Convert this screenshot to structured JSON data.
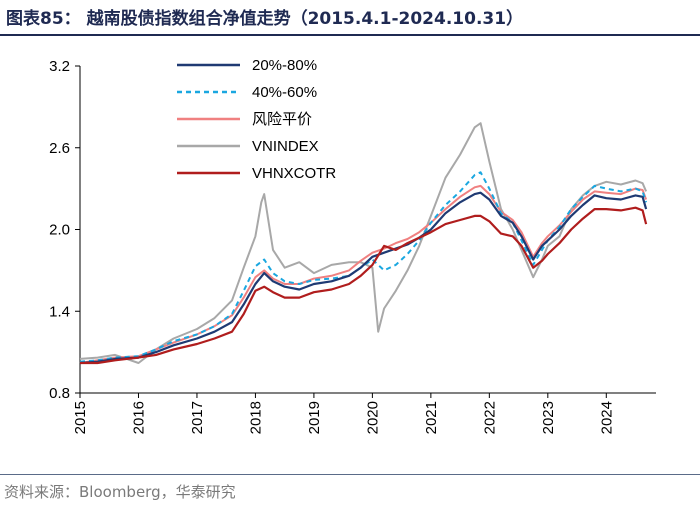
{
  "header": {
    "title": "图表85：  越南股债指数组合净值走势（2015.4.1-2024.10.31）"
  },
  "footer": {
    "source": "资料来源：Bloomberg，华泰研究"
  },
  "chart_data": {
    "type": "line",
    "title": "越南股债指数组合净值走势（2015.4.1-2024.10.31）",
    "xlabel": "",
    "ylabel": "",
    "xlim": [
      2015.0,
      2024.85
    ],
    "ylim": [
      0.8,
      3.2
    ],
    "yticks": [
      "3.2",
      "2.6",
      "2.0",
      "1.4",
      "0.8"
    ],
    "ytick_values": [
      3.2,
      2.6,
      2.0,
      1.4,
      0.8
    ],
    "xticks": [
      "2015",
      "2016",
      "2017",
      "2018",
      "2019",
      "2020",
      "2021",
      "2022",
      "2023",
      "2024"
    ],
    "xtick_values": [
      2015,
      2016,
      2017,
      2018,
      2019,
      2020,
      2021,
      2022,
      2023,
      2024
    ],
    "legend_position": "top-left",
    "series": [
      {
        "name": "20%-80%",
        "color": "#1f3a73",
        "dash": "",
        "x": [
          2015.0,
          2015.3,
          2015.6,
          2016.0,
          2016.3,
          2016.6,
          2017.0,
          2017.3,
          2017.6,
          2017.8,
          2018.0,
          2018.15,
          2018.3,
          2018.5,
          2018.75,
          2019.0,
          2019.3,
          2019.6,
          2019.8,
          2020.0,
          2020.2,
          2020.4,
          2020.6,
          2020.8,
          2021.0,
          2021.25,
          2021.5,
          2021.75,
          2021.85,
          2022.0,
          2022.2,
          2022.4,
          2022.55,
          2022.75,
          2022.9,
          2023.0,
          2023.2,
          2023.4,
          2023.6,
          2023.8,
          2024.0,
          2024.25,
          2024.5,
          2024.62,
          2024.68
        ],
        "values": [
          1.02,
          1.03,
          1.05,
          1.06,
          1.1,
          1.15,
          1.2,
          1.25,
          1.32,
          1.45,
          1.6,
          1.68,
          1.62,
          1.58,
          1.56,
          1.6,
          1.62,
          1.66,
          1.72,
          1.8,
          1.83,
          1.86,
          1.89,
          1.94,
          2.0,
          2.12,
          2.2,
          2.26,
          2.27,
          2.22,
          2.1,
          2.05,
          1.95,
          1.78,
          1.88,
          1.92,
          2.0,
          2.1,
          2.18,
          2.25,
          2.23,
          2.22,
          2.25,
          2.24,
          2.15
        ]
      },
      {
        "name": "40%-60%",
        "color": "#1aa7e0",
        "dash": "5,4",
        "x": [
          2015.0,
          2015.3,
          2015.6,
          2016.0,
          2016.3,
          2016.6,
          2017.0,
          2017.3,
          2017.6,
          2017.8,
          2018.0,
          2018.15,
          2018.3,
          2018.5,
          2018.75,
          2019.0,
          2019.3,
          2019.6,
          2019.8,
          2020.0,
          2020.2,
          2020.4,
          2020.6,
          2020.8,
          2021.0,
          2021.25,
          2021.5,
          2021.75,
          2021.85,
          2022.0,
          2022.2,
          2022.4,
          2022.55,
          2022.75,
          2022.9,
          2023.0,
          2023.2,
          2023.4,
          2023.6,
          2023.8,
          2024.0,
          2024.25,
          2024.5,
          2024.62,
          2024.68
        ],
        "values": [
          1.03,
          1.04,
          1.06,
          1.07,
          1.12,
          1.18,
          1.23,
          1.29,
          1.38,
          1.55,
          1.73,
          1.78,
          1.68,
          1.62,
          1.6,
          1.63,
          1.64,
          1.66,
          1.72,
          1.78,
          1.7,
          1.74,
          1.82,
          1.92,
          2.05,
          2.18,
          2.28,
          2.4,
          2.42,
          2.3,
          2.12,
          2.05,
          1.92,
          1.74,
          1.85,
          1.92,
          2.02,
          2.15,
          2.24,
          2.32,
          2.3,
          2.28,
          2.3,
          2.28,
          2.2
        ]
      },
      {
        "name": "风险平价",
        "color": "#f08080",
        "dash": "",
        "x": [
          2015.0,
          2015.3,
          2015.6,
          2016.0,
          2016.3,
          2016.6,
          2017.0,
          2017.3,
          2017.6,
          2017.8,
          2018.0,
          2018.15,
          2018.3,
          2018.5,
          2018.75,
          2019.0,
          2019.3,
          2019.6,
          2019.8,
          2020.0,
          2020.2,
          2020.4,
          2020.6,
          2020.8,
          2021.0,
          2021.25,
          2021.5,
          2021.75,
          2021.85,
          2022.0,
          2022.2,
          2022.4,
          2022.55,
          2022.75,
          2022.9,
          2023.0,
          2023.2,
          2023.4,
          2023.6,
          2023.8,
          2024.0,
          2024.25,
          2024.5,
          2024.62,
          2024.68
        ],
        "values": [
          1.02,
          1.04,
          1.06,
          1.07,
          1.12,
          1.17,
          1.23,
          1.29,
          1.37,
          1.5,
          1.65,
          1.7,
          1.64,
          1.6,
          1.6,
          1.64,
          1.66,
          1.7,
          1.77,
          1.83,
          1.86,
          1.9,
          1.93,
          1.98,
          2.05,
          2.15,
          2.24,
          2.31,
          2.32,
          2.26,
          2.13,
          2.07,
          1.98,
          1.8,
          1.9,
          1.95,
          2.03,
          2.13,
          2.22,
          2.28,
          2.27,
          2.26,
          2.3,
          2.29,
          2.22
        ]
      },
      {
        "name": "VNINDEX",
        "color": "#a8a8a8",
        "dash": "",
        "x": [
          2015.0,
          2015.3,
          2015.6,
          2016.0,
          2016.3,
          2016.6,
          2017.0,
          2017.3,
          2017.6,
          2017.8,
          2018.0,
          2018.1,
          2018.15,
          2018.3,
          2018.5,
          2018.75,
          2019.0,
          2019.3,
          2019.6,
          2019.8,
          2020.0,
          2020.1,
          2020.2,
          2020.4,
          2020.6,
          2020.8,
          2021.0,
          2021.25,
          2021.5,
          2021.75,
          2021.85,
          2022.0,
          2022.2,
          2022.4,
          2022.55,
          2022.75,
          2022.9,
          2023.0,
          2023.2,
          2023.4,
          2023.6,
          2023.8,
          2024.0,
          2024.25,
          2024.5,
          2024.62,
          2024.68
        ],
        "values": [
          1.05,
          1.06,
          1.08,
          1.02,
          1.12,
          1.2,
          1.27,
          1.35,
          1.48,
          1.72,
          1.95,
          2.2,
          2.26,
          1.85,
          1.72,
          1.76,
          1.68,
          1.74,
          1.76,
          1.76,
          1.72,
          1.25,
          1.42,
          1.55,
          1.7,
          1.88,
          2.1,
          2.38,
          2.55,
          2.75,
          2.78,
          2.5,
          2.15,
          2.0,
          1.85,
          1.65,
          1.78,
          1.88,
          1.95,
          2.15,
          2.25,
          2.32,
          2.35,
          2.33,
          2.36,
          2.34,
          2.28
        ]
      },
      {
        "name": "VHNXCOTR",
        "color": "#b01d1d",
        "dash": "",
        "x": [
          2015.0,
          2015.3,
          2015.6,
          2016.0,
          2016.3,
          2016.6,
          2017.0,
          2017.3,
          2017.6,
          2017.8,
          2018.0,
          2018.15,
          2018.3,
          2018.5,
          2018.75,
          2019.0,
          2019.3,
          2019.6,
          2019.8,
          2020.0,
          2020.2,
          2020.4,
          2020.6,
          2020.8,
          2021.0,
          2021.25,
          2021.5,
          2021.75,
          2021.85,
          2022.0,
          2022.2,
          2022.4,
          2022.55,
          2022.75,
          2022.9,
          2023.0,
          2023.2,
          2023.4,
          2023.6,
          2023.8,
          2024.0,
          2024.25,
          2024.5,
          2024.62,
          2024.68
        ],
        "values": [
          1.02,
          1.02,
          1.04,
          1.06,
          1.08,
          1.12,
          1.16,
          1.2,
          1.25,
          1.38,
          1.55,
          1.58,
          1.54,
          1.5,
          1.5,
          1.54,
          1.56,
          1.6,
          1.66,
          1.74,
          1.88,
          1.85,
          1.9,
          1.94,
          1.98,
          2.04,
          2.07,
          2.1,
          2.1,
          2.06,
          1.97,
          1.95,
          1.88,
          1.72,
          1.77,
          1.82,
          1.9,
          2.0,
          2.08,
          2.15,
          2.15,
          2.14,
          2.16,
          2.14,
          2.04
        ]
      }
    ]
  }
}
